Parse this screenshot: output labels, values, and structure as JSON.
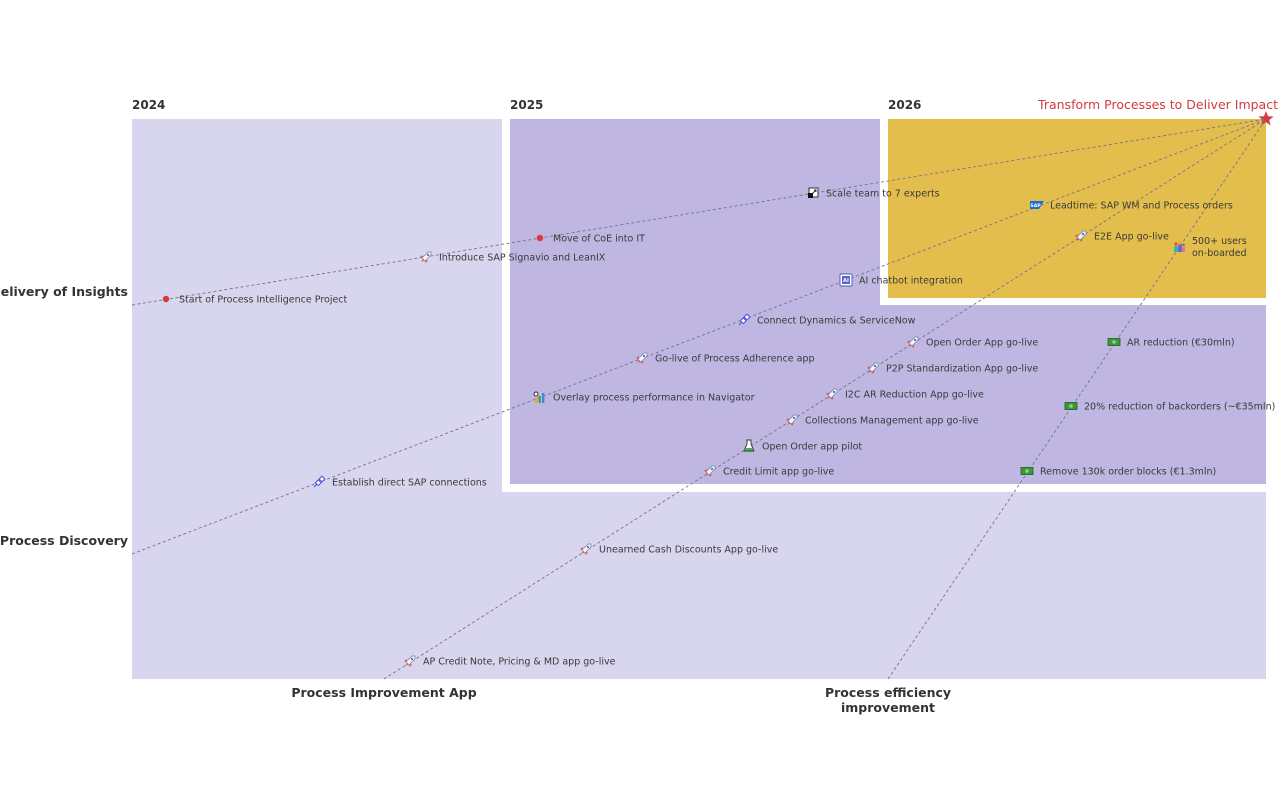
{
  "goal": {
    "label": "Transform Processes to Deliver Impact",
    "color": "#d6393f"
  },
  "years": [
    "2024",
    "2025",
    "2026"
  ],
  "row_labels": {
    "insights": "Delivery of Insights",
    "discovery": "Process Discovery"
  },
  "column_labels": {
    "app": "Process Improvement App",
    "efficiency_line1": "Process efficiency",
    "efficiency_line2": "improvement"
  },
  "colors": {
    "zone_2024": "#d8d5ee",
    "zone_2025": "#bfb7e1",
    "zone_2026": "#e4be4c",
    "dot": "#d63a3a"
  },
  "milestones": [
    {
      "label": "Start of Process Intelligence Project",
      "icon": "dot-icon"
    },
    {
      "label": "Introduce SAP Signavio and LeanIX",
      "icon": "rocket-icon"
    },
    {
      "label": "Move of CoE into IT",
      "icon": "dot-icon"
    },
    {
      "label": "Scale team to 7 experts",
      "icon": "scale-icon"
    },
    {
      "label": "Leadtime: SAP WM and Process orders",
      "icon": "sap-logo-icon",
      "icon_text": "SAP"
    },
    {
      "label": "E2E App go-live",
      "icon": "rocket-icon"
    },
    {
      "label": "500+ users",
      "label2": "on-boarded",
      "icon": "users-icon"
    },
    {
      "label": "AI chatbot integration",
      "icon": "ai-chip-icon",
      "icon_text": "AI"
    },
    {
      "label": "Connect Dynamics & ServiceNow",
      "icon": "plug-icon"
    },
    {
      "label": "Open Order App go-live",
      "icon": "rocket-icon"
    },
    {
      "label": "AR reduction (€30mln)",
      "icon": "money-icon"
    },
    {
      "label": "Go-live of Process Adherence app",
      "icon": "rocket-icon"
    },
    {
      "label": "P2P Standardization App go-live",
      "icon": "rocket-icon"
    },
    {
      "label": "I2C AR Reduction App go-live",
      "icon": "rocket-icon"
    },
    {
      "label": "Overlay process performance in Navigator",
      "icon": "chart-icon"
    },
    {
      "label": "20% reduction of backorders (~€35mln)",
      "icon": "money-icon"
    },
    {
      "label": "Collections Management app go-live",
      "icon": "rocket-icon"
    },
    {
      "label": "Open Order app pilot",
      "icon": "flask-icon"
    },
    {
      "label": "Credit Limit app go-live",
      "icon": "rocket-icon"
    },
    {
      "label": "Remove 130k order blocks (€1.3mln)",
      "icon": "money-icon"
    },
    {
      "label": "Establish direct SAP connections",
      "icon": "plug-icon"
    },
    {
      "label": "Unearned Cash Discounts App go-live",
      "icon": "rocket-icon"
    },
    {
      "label": "AP Credit Note, Pricing & MD app go-live",
      "icon": "rocket-icon"
    }
  ]
}
